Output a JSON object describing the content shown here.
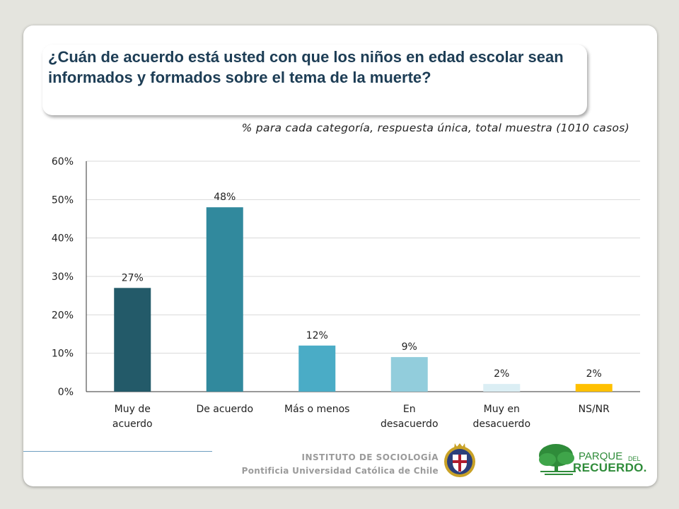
{
  "question": "¿Cuán de acuerdo está usted con que los niños en edad escolar sean informados y formados sobre el tema de la muerte?",
  "subtitle": "% para cada categoría, respuesta única, total muestra (1010 casos)",
  "footer": {
    "institute": "INSTITUTO DE SOCIOLOGÍA",
    "university": "Pontificia Universidad Católica de Chile",
    "park_logo_text": [
      "PARQUE",
      "DEL",
      "RECUERDO."
    ]
  },
  "chart_data": {
    "type": "bar",
    "categories": [
      [
        "Muy de",
        "acuerdo"
      ],
      [
        "De acuerdo"
      ],
      [
        "Más o menos"
      ],
      [
        "En",
        "desacuerdo"
      ],
      [
        "Muy en",
        "desacuerdo"
      ],
      [
        "NS/NR"
      ]
    ],
    "values": [
      27,
      48,
      12,
      9,
      2,
      2
    ],
    "data_labels": [
      "27%",
      "48%",
      "12%",
      "9%",
      "2%",
      "2%"
    ],
    "colors": [
      "#235a69",
      "#31899d",
      "#4aacc6",
      "#92cddc",
      "#dbeef4",
      "#ffc000"
    ],
    "ylim": [
      0,
      60
    ],
    "yticks": [
      "0%",
      "10%",
      "20%",
      "30%",
      "40%",
      "50%",
      "60%"
    ],
    "grid": true,
    "legend": "none"
  }
}
